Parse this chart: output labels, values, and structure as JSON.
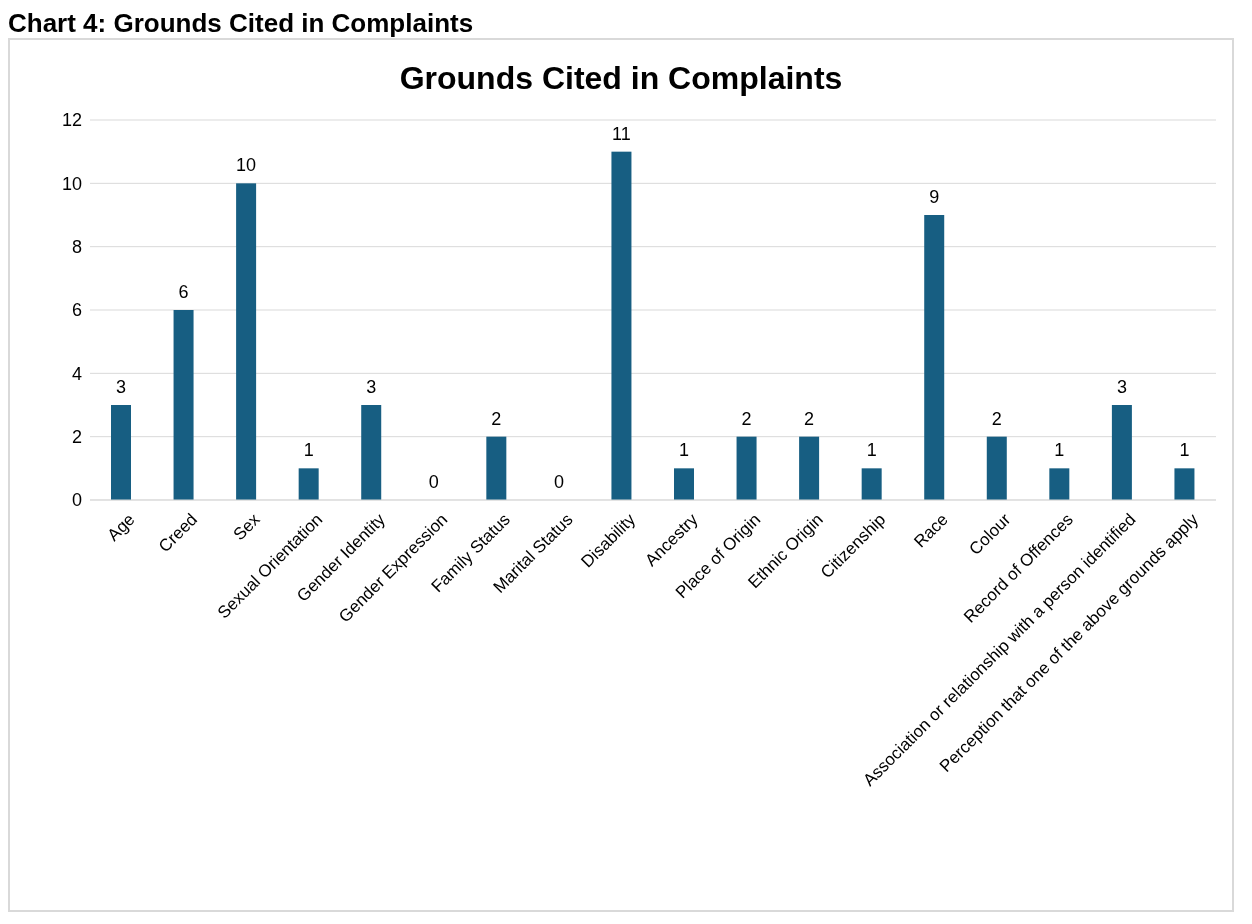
{
  "chart_data": {
    "type": "bar",
    "title": "Grounds Cited in Complaints",
    "annotations": [
      "Chart 4: Grounds Cited in Complaints"
    ],
    "categories": [
      "Age",
      "Creed",
      "Sex",
      "Sexual Orientation",
      "Gender Identity",
      "Gender Expression",
      "Family Status",
      "Marital Status",
      "Disability",
      "Ancestry",
      "Place of Origin",
      "Ethnic Origin",
      "Citizenship",
      "Race",
      "Colour",
      "Record of Offences",
      "Association or relationship with a person identified",
      "Perception that one of the above grounds apply"
    ],
    "values": [
      3,
      6,
      10,
      1,
      3,
      0,
      2,
      0,
      11,
      1,
      2,
      2,
      1,
      9,
      2,
      1,
      3,
      1
    ],
    "color": "#175e82",
    "ylim": [
      0,
      12
    ],
    "yticks": [
      0,
      2,
      4,
      6,
      8,
      10,
      12
    ],
    "grid": "y",
    "data_labels": true,
    "legend": false
  }
}
